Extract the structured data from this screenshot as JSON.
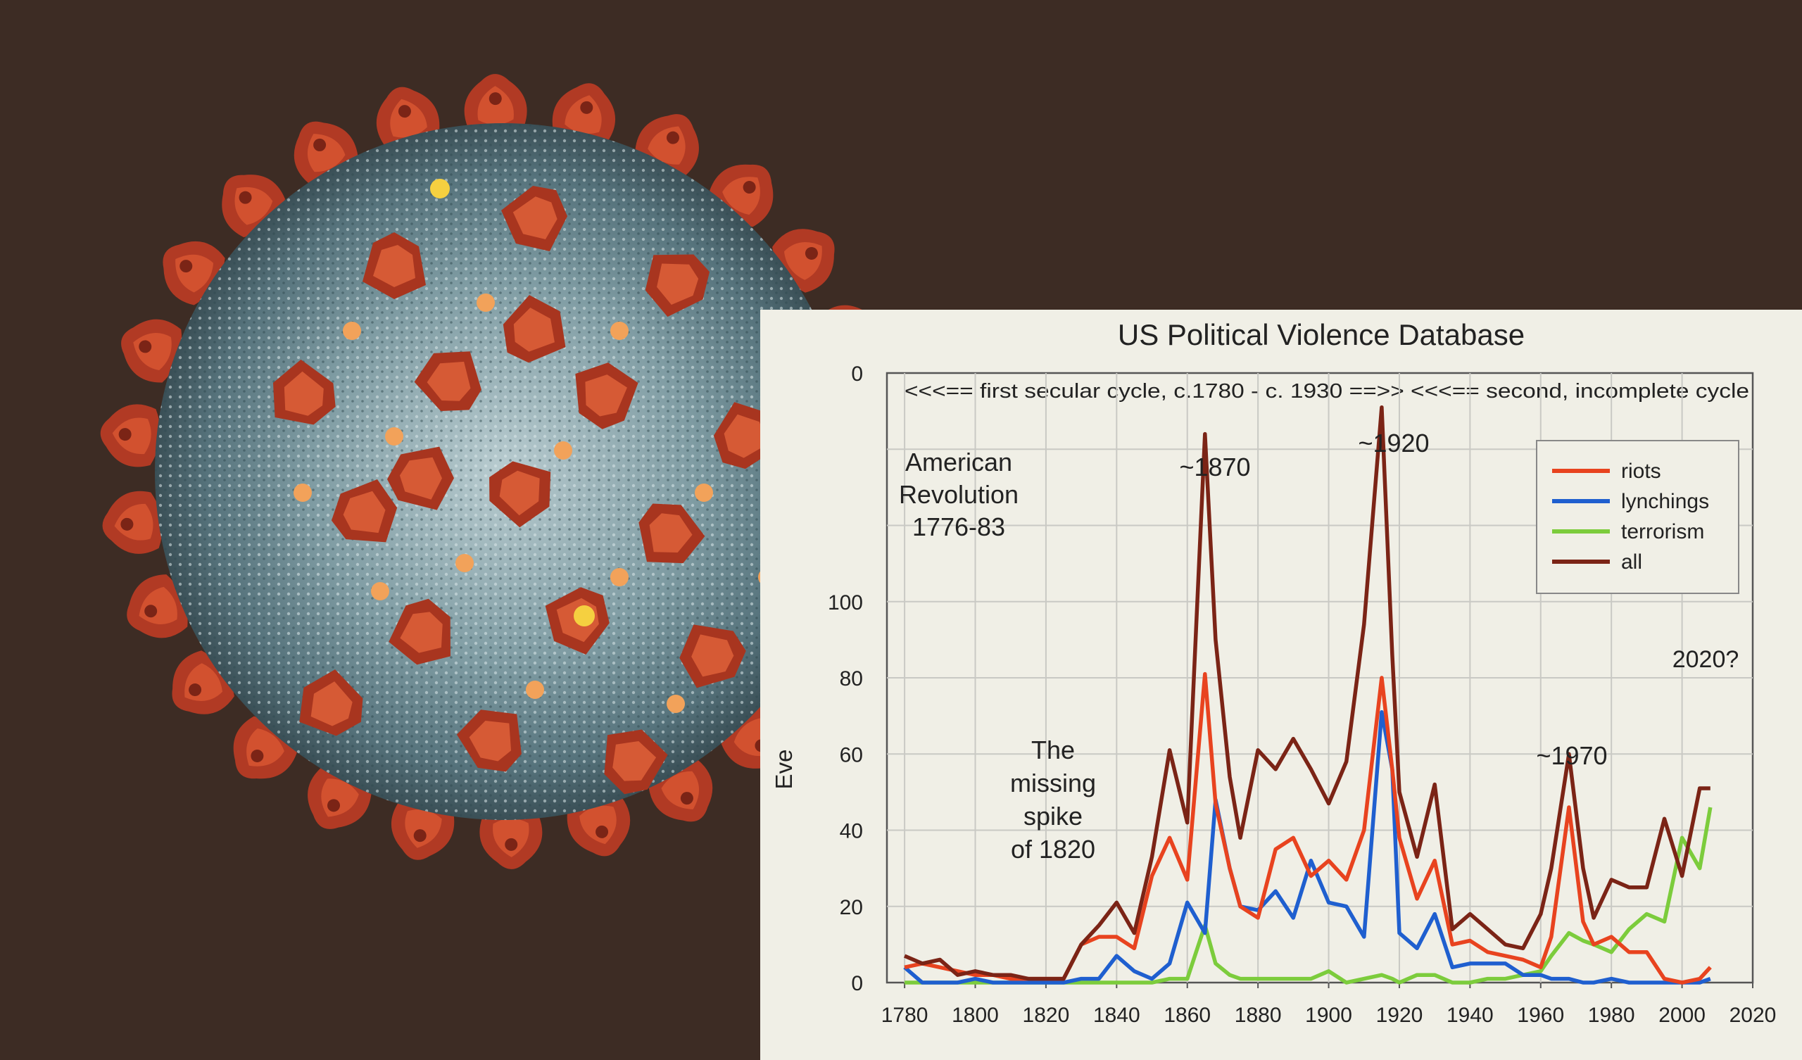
{
  "colors": {
    "background": "#3d2c24",
    "panel": "#f0efe6",
    "riots": "#e8431f",
    "lynchings": "#1f5fcf",
    "terrorism": "#7ccc3c",
    "all": "#7b2416"
  },
  "illustration": {
    "icon": "coronavirus-illustration"
  },
  "chart_data": {
    "type": "line",
    "title": "US Political Violence Database",
    "subtitle": "<<<==  first secular cycle, c.1780 - c. 1930  ==>> <<<==  second, incomplete cycle",
    "ylabel": "Eve",
    "xlabel": "",
    "xlim": [
      1775,
      2020
    ],
    "ylim": [
      0,
      160
    ],
    "x_ticks": [
      "1780",
      "1800",
      "1820",
      "1840",
      "1860",
      "1880",
      "1900",
      "1920",
      "1940",
      "1960",
      "1980",
      "2000",
      "2020"
    ],
    "y_ticks": [
      "0",
      "20",
      "40",
      "60",
      "80",
      "100",
      "",
      "",
      "0"
    ],
    "grid": true,
    "legend_position": "top-right",
    "series": [
      {
        "name": "riots",
        "x": [
          1780,
          1785,
          1790,
          1795,
          1800,
          1805,
          1810,
          1815,
          1820,
          1825,
          1830,
          1835,
          1840,
          1845,
          1850,
          1855,
          1860,
          1865,
          1868,
          1872,
          1875,
          1880,
          1885,
          1890,
          1895,
          1900,
          1905,
          1910,
          1915,
          1918,
          1920,
          1925,
          1930,
          1935,
          1940,
          1945,
          1950,
          1955,
          1960,
          1963,
          1968,
          1972,
          1975,
          1980,
          1985,
          1990,
          1995,
          2000,
          2005,
          2008
        ],
        "y": [
          4,
          5,
          4,
          3,
          2,
          2,
          1,
          1,
          1,
          1,
          10,
          12,
          12,
          9,
          28,
          38,
          27,
          81,
          47,
          30,
          20,
          17,
          35,
          38,
          28,
          32,
          27,
          40,
          80,
          56,
          38,
          22,
          32,
          10,
          11,
          8,
          7,
          6,
          4,
          12,
          46,
          16,
          10,
          12,
          8,
          8,
          1,
          0,
          1,
          4
        ]
      },
      {
        "name": "lynchings",
        "x": [
          1780,
          1785,
          1790,
          1795,
          1800,
          1805,
          1810,
          1815,
          1820,
          1825,
          1830,
          1835,
          1840,
          1845,
          1850,
          1855,
          1860,
          1865,
          1868,
          1872,
          1875,
          1880,
          1885,
          1890,
          1895,
          1900,
          1905,
          1910,
          1915,
          1918,
          1920,
          1925,
          1930,
          1935,
          1940,
          1945,
          1950,
          1955,
          1960,
          1963,
          1968,
          1972,
          1975,
          1980,
          1985,
          1990,
          1995,
          2000,
          2005,
          2008
        ],
        "y": [
          4,
          0,
          0,
          0,
          1,
          0,
          0,
          0,
          0,
          0,
          1,
          1,
          7,
          3,
          1,
          5,
          21,
          13,
          48,
          30,
          20,
          19,
          24,
          17,
          32,
          21,
          20,
          12,
          71,
          56,
          13,
          9,
          18,
          4,
          5,
          5,
          5,
          2,
          2,
          1,
          1,
          0,
          0,
          1,
          0,
          0,
          0,
          0,
          0,
          1
        ]
      },
      {
        "name": "terrorism",
        "x": [
          1780,
          1785,
          1790,
          1795,
          1800,
          1805,
          1810,
          1815,
          1820,
          1825,
          1830,
          1835,
          1840,
          1845,
          1850,
          1855,
          1860,
          1865,
          1868,
          1872,
          1875,
          1880,
          1885,
          1890,
          1895,
          1900,
          1905,
          1910,
          1915,
          1918,
          1920,
          1925,
          1930,
          1935,
          1940,
          1945,
          1950,
          1955,
          1960,
          1963,
          1968,
          1972,
          1975,
          1980,
          1985,
          1990,
          1995,
          2000,
          2005,
          2008
        ],
        "y": [
          0,
          0,
          0,
          0,
          0,
          0,
          0,
          0,
          0,
          0,
          0,
          0,
          0,
          0,
          0,
          1,
          1,
          15,
          5,
          2,
          1,
          1,
          1,
          1,
          1,
          3,
          0,
          1,
          2,
          1,
          0,
          2,
          2,
          0,
          0,
          1,
          1,
          2,
          3,
          7,
          13,
          11,
          10,
          8,
          14,
          18,
          16,
          38,
          30,
          46
        ]
      },
      {
        "name": "all",
        "x": [
          1780,
          1785,
          1790,
          1795,
          1800,
          1805,
          1810,
          1815,
          1820,
          1825,
          1830,
          1835,
          1840,
          1845,
          1850,
          1855,
          1860,
          1865,
          1868,
          1872,
          1875,
          1880,
          1885,
          1890,
          1895,
          1900,
          1905,
          1910,
          1915,
          1918,
          1920,
          1925,
          1930,
          1935,
          1940,
          1945,
          1950,
          1955,
          1960,
          1963,
          1968,
          1972,
          1975,
          1980,
          1985,
          1990,
          1995,
          2000,
          2005,
          2008
        ],
        "y": [
          7,
          5,
          6,
          2,
          3,
          2,
          2,
          1,
          1,
          1,
          10,
          15,
          21,
          13,
          33,
          61,
          42,
          144,
          90,
          54,
          38,
          61,
          56,
          64,
          56,
          47,
          58,
          94,
          151,
          86,
          50,
          33,
          52,
          14,
          18,
          14,
          10,
          9,
          18,
          30,
          60,
          30,
          17,
          27,
          25,
          25,
          43,
          28,
          51,
          51
        ]
      }
    ],
    "annotations": [
      {
        "lines": [
          "American",
          "Revolution",
          "1776-83"
        ]
      },
      {
        "lines": [
          "~1870"
        ]
      },
      {
        "lines": [
          "~1920"
        ]
      },
      {
        "lines": [
          "The",
          "missing",
          "spike",
          "of 1820"
        ]
      },
      {
        "lines": [
          "~1970"
        ]
      },
      {
        "lines": [
          "2020?"
        ]
      }
    ]
  }
}
